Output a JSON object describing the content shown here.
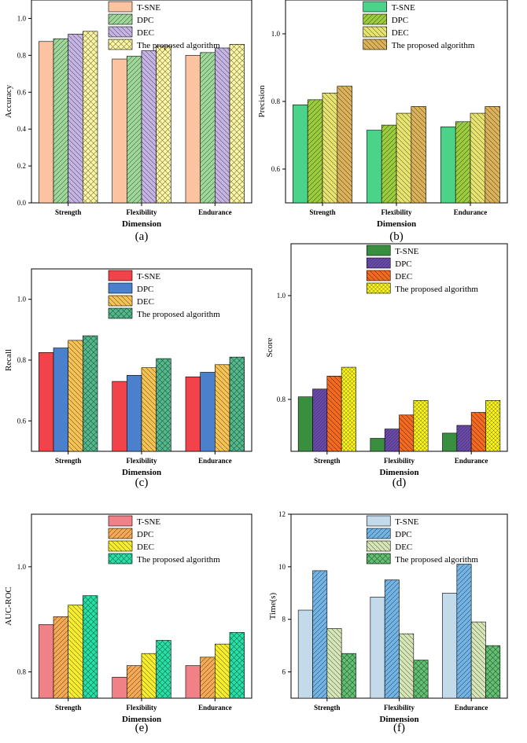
{
  "colors": {
    "a": [
      "#fbc3a0",
      "#9fd89a",
      "#c6b4e4",
      "#fdf7a4"
    ],
    "b": [
      "#4bd389",
      "#9ccd3e",
      "#e8e470",
      "#dcb25a"
    ],
    "c": [
      "#f2424a",
      "#4a80cc",
      "#f7c354",
      "#53b98c"
    ],
    "d": [
      "#3a8e3f",
      "#6a4aa9",
      "#f46a1f",
      "#f8f21a"
    ],
    "e": [
      "#f08186",
      "#f7aa55",
      "#f8ee2b",
      "#27e0a6"
    ],
    "f": [
      "#c2daea",
      "#73b4e6",
      "#d6e6b6",
      "#61c071"
    ]
  },
  "chart_data": [
    {
      "id": "a",
      "type": "bar",
      "panel_label": "(a)",
      "xlabel": "Dimension",
      "ylabel": "Accuracy",
      "categories": [
        "Strength",
        "Flexibility",
        "Endurance"
      ],
      "ylim": [
        0,
        1.1
      ],
      "yticks": [
        0.0,
        0.2,
        0.4,
        0.6,
        0.8,
        1.0
      ],
      "tick_labels": [
        "0.0",
        "0.2",
        "0.4",
        "0.6",
        "0.8",
        "1.0"
      ],
      "legend": [
        "T-SNE",
        "DPC",
        "DEC",
        "The proposed algorithm"
      ],
      "series": [
        {
          "name": "T-SNE",
          "values": [
            0.875,
            0.78,
            0.8
          ]
        },
        {
          "name": "DPC",
          "values": [
            0.89,
            0.795,
            0.815
          ]
        },
        {
          "name": "DEC",
          "values": [
            0.915,
            0.825,
            0.84
          ]
        },
        {
          "name": "The proposed algorithm",
          "values": [
            0.93,
            0.85,
            0.86
          ]
        }
      ]
    },
    {
      "id": "b",
      "type": "bar",
      "panel_label": "(b)",
      "xlabel": "Dimension",
      "ylabel": "Precision",
      "categories": [
        "Strength",
        "Flexibility",
        "Endurance"
      ],
      "ylim": [
        0.5,
        1.1
      ],
      "yticks": [
        0.6,
        0.8,
        1.0
      ],
      "tick_labels": [
        "0.6",
        "0.8",
        "1.0"
      ],
      "legend": [
        "T-SNE",
        "DPC",
        "DEC",
        "The proposed algorithm"
      ],
      "series": [
        {
          "name": "T-SNE",
          "values": [
            0.79,
            0.715,
            0.725
          ]
        },
        {
          "name": "DPC",
          "values": [
            0.805,
            0.73,
            0.74
          ]
        },
        {
          "name": "DEC",
          "values": [
            0.825,
            0.765,
            0.765
          ]
        },
        {
          "name": "The proposed algorithm",
          "values": [
            0.845,
            0.785,
            0.785
          ]
        }
      ]
    },
    {
      "id": "c",
      "type": "bar",
      "panel_label": "(c)",
      "xlabel": "Dimension",
      "ylabel": "Recall",
      "categories": [
        "Strength",
        "Flexibility",
        "Endurance"
      ],
      "ylim": [
        0.5,
        1.1
      ],
      "yticks": [
        0.6,
        0.8,
        1.0
      ],
      "tick_labels": [
        "0.6",
        "0.8",
        "1.0"
      ],
      "legend": [
        "T-SNE",
        "DPC",
        "DEC",
        "The proposed algorithm"
      ],
      "series": [
        {
          "name": "T-SNE",
          "values": [
            0.825,
            0.73,
            0.745
          ]
        },
        {
          "name": "DPC",
          "values": [
            0.84,
            0.75,
            0.76
          ]
        },
        {
          "name": "DEC",
          "values": [
            0.865,
            0.775,
            0.785
          ]
        },
        {
          "name": "The proposed algorithm",
          "values": [
            0.88,
            0.805,
            0.81
          ]
        }
      ]
    },
    {
      "id": "d",
      "type": "bar",
      "panel_label": "(d)",
      "xlabel": "Dimension",
      "ylabel": "Score",
      "categories": [
        "Strength",
        "Flexibility",
        "Endurance"
      ],
      "ylim": [
        0.7,
        1.1
      ],
      "yticks": [
        0.8,
        1.0
      ],
      "tick_labels": [
        "0.8",
        "1.0"
      ],
      "legend": [
        "T-SNE",
        "DPC",
        "DEC",
        "The proposed algorithm"
      ],
      "series": [
        {
          "name": "T-SNE",
          "values": [
            0.805,
            0.725,
            0.735
          ]
        },
        {
          "name": "DPC",
          "values": [
            0.82,
            0.743,
            0.75
          ]
        },
        {
          "name": "DEC",
          "values": [
            0.845,
            0.77,
            0.775
          ]
        },
        {
          "name": "The proposed algorithm",
          "values": [
            0.862,
            0.798,
            0.798
          ]
        }
      ]
    },
    {
      "id": "e",
      "type": "bar",
      "panel_label": "(e)",
      "xlabel": "Dimension",
      "ylabel": "AUC-ROC",
      "categories": [
        "Strength",
        "Flexibility",
        "Endurance"
      ],
      "ylim": [
        0.75,
        1.1
      ],
      "yticks": [
        0.8,
        1.0
      ],
      "tick_labels": [
        "0.8",
        "1.0"
      ],
      "legend": [
        "T-SNE",
        "DPC",
        "DEC",
        "The proposed algorithm"
      ],
      "series": [
        {
          "name": "T-SNE",
          "values": [
            0.89,
            0.79,
            0.812
          ]
        },
        {
          "name": "DPC",
          "values": [
            0.905,
            0.812,
            0.828
          ]
        },
        {
          "name": "DEC",
          "values": [
            0.927,
            0.835,
            0.853
          ]
        },
        {
          "name": "The proposed algorithm",
          "values": [
            0.945,
            0.86,
            0.875
          ]
        }
      ]
    },
    {
      "id": "f",
      "type": "bar",
      "panel_label": "(f)",
      "xlabel": "Dimension",
      "ylabel": "Time(s)",
      "categories": [
        "Strength",
        "Flexibility",
        "Endurance"
      ],
      "ylim": [
        5,
        12
      ],
      "yticks": [
        6,
        8,
        10,
        12
      ],
      "tick_labels": [
        "6",
        "8",
        "10",
        "12"
      ],
      "legend": [
        "T-SNE",
        "DPC",
        "DEC",
        "The proposed algorithm"
      ],
      "series": [
        {
          "name": "T-SNE",
          "values": [
            8.35,
            8.85,
            9.0
          ]
        },
        {
          "name": "DPC",
          "values": [
            9.85,
            9.5,
            10.1
          ]
        },
        {
          "name": "DEC",
          "values": [
            7.65,
            7.45,
            7.9
          ]
        },
        {
          "name": "The proposed algorithm",
          "values": [
            6.7,
            6.45,
            7.0
          ]
        }
      ]
    }
  ]
}
